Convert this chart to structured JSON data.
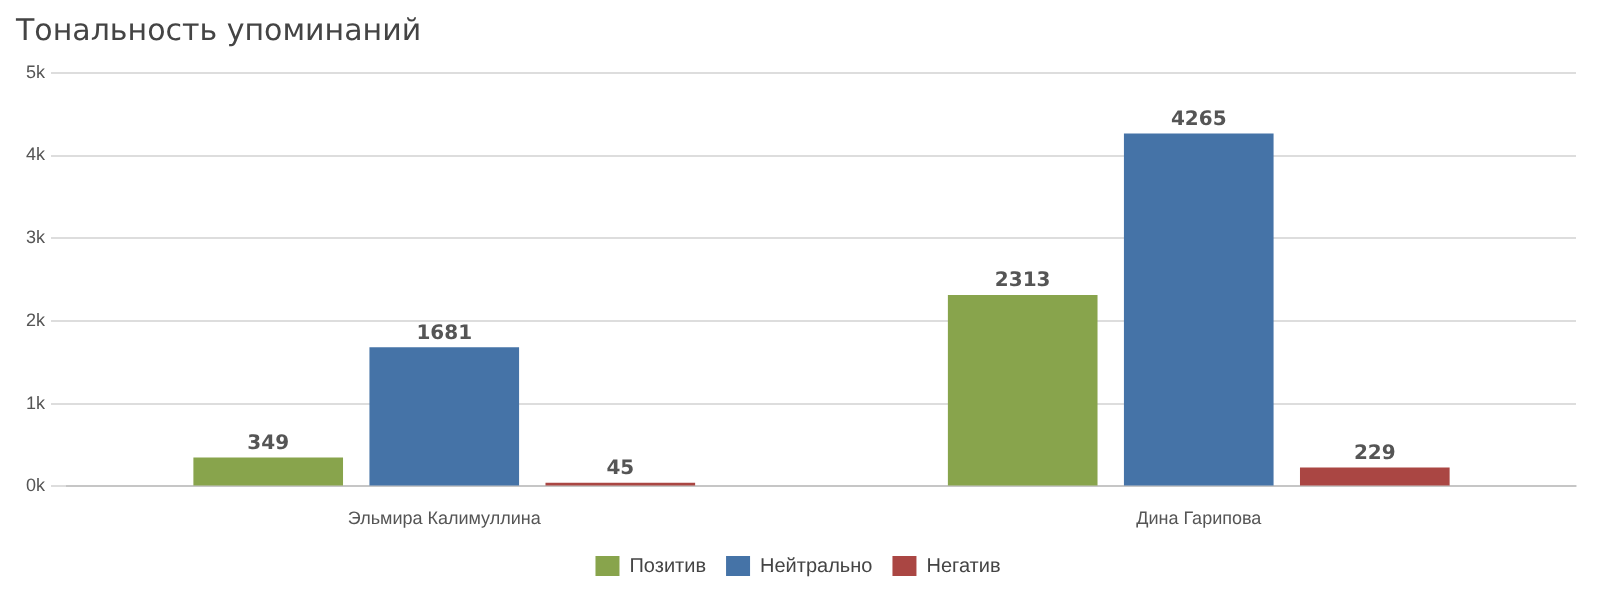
{
  "chart_data": {
    "type": "bar",
    "title": "Тональность упоминаний",
    "categories": [
      "Эльмира Калимуллина",
      "Дина Гарипова"
    ],
    "series": [
      {
        "name": "Позитив",
        "color": "#88a44c",
        "values": [
          349,
          2313
        ]
      },
      {
        "name": "Нейтрально",
        "color": "#4573a7",
        "values": [
          1681,
          4265
        ]
      },
      {
        "name": "Негатив",
        "color": "#aa4643",
        "values": [
          45,
          229
        ]
      }
    ],
    "ylim": [
      0,
      5000
    ],
    "yticks": [
      {
        "value": 0,
        "label": "0k"
      },
      {
        "value": 1000,
        "label": "1k"
      },
      {
        "value": 2000,
        "label": "2k"
      },
      {
        "value": 3000,
        "label": "3k"
      },
      {
        "value": 4000,
        "label": "4k"
      },
      {
        "value": 5000,
        "label": "5k"
      }
    ],
    "grid": "y",
    "legend": "bottom",
    "data_labels": true
  }
}
